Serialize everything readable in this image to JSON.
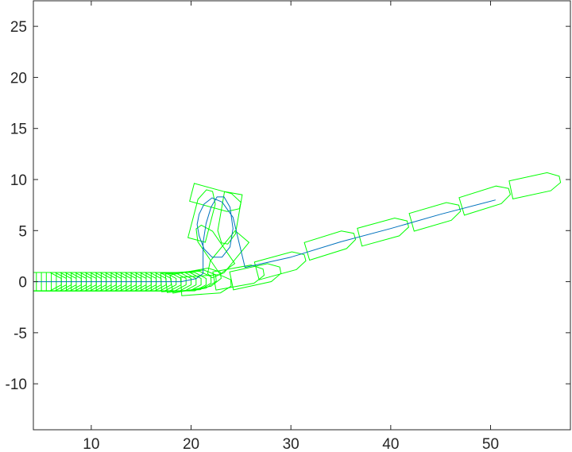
{
  "chart_data": {
    "type": "line",
    "title": "",
    "xlabel": "",
    "ylabel": "",
    "xlim": [
      4.2,
      58.0
    ],
    "ylim": [
      -14.5,
      27.5
    ],
    "grid": false,
    "legend": "none",
    "x_ticks": [
      10,
      20,
      30,
      40,
      50
    ],
    "y_ticks": [
      -10,
      -5,
      0,
      5,
      10,
      15,
      20,
      25
    ],
    "x_tick_labels": [
      "10",
      "20",
      "30",
      "40",
      "50"
    ],
    "y_tick_labels": [
      "-10",
      "-5",
      "0",
      "5",
      "10",
      "15",
      "20",
      "25"
    ],
    "colors": {
      "path": "#0072bd",
      "vehicle": "#00ff00",
      "axes": "#262626"
    },
    "series": [
      {
        "kind": "path",
        "x": [
          4.2,
          10,
          15,
          19,
          20.5,
          21.2,
          21.2,
          21.5,
          22.0,
          22.6,
          23.3,
          23.9,
          24.2,
          23.9,
          23.1,
          22.1,
          21.3,
          20.8,
          20.6,
          20.8,
          21.3,
          22.1,
          23.1,
          24.2,
          25.4,
          30,
          35,
          40,
          45,
          50.5
        ],
        "y": [
          0,
          0,
          0,
          0,
          0.3,
          0.8,
          3.8,
          5.7,
          7.3,
          8.3,
          8.3,
          7.3,
          5.2,
          3.4,
          2.4,
          2.4,
          3.2,
          4.5,
          5.6,
          6.6,
          7.6,
          8.2,
          7.8,
          6.3,
          1.4,
          2.4,
          3.9,
          5.2,
          6.6,
          8.0
        ]
      },
      {
        "kind": "vehicle-outlines",
        "length": 5.0,
        "width": 1.8,
        "poses": [
          [
            4.5,
            0,
            0
          ],
          [
            5.0,
            0,
            0
          ],
          [
            5.5,
            0,
            0
          ],
          [
            6.0,
            0,
            0
          ],
          [
            6.5,
            0,
            0
          ],
          [
            7.0,
            0,
            0
          ],
          [
            7.5,
            0,
            0
          ],
          [
            8.0,
            0,
            0
          ],
          [
            8.5,
            0,
            0
          ],
          [
            9.0,
            0,
            0
          ],
          [
            9.5,
            0,
            0
          ],
          [
            10.0,
            0,
            0
          ],
          [
            10.5,
            0,
            0
          ],
          [
            11.0,
            0,
            0
          ],
          [
            11.5,
            0,
            0
          ],
          [
            12.0,
            0,
            0
          ],
          [
            12.5,
            0,
            0
          ],
          [
            13.0,
            0,
            0
          ],
          [
            13.5,
            0,
            0
          ],
          [
            14.0,
            0,
            0
          ],
          [
            14.5,
            0,
            0
          ],
          [
            15.0,
            0,
            0
          ],
          [
            15.5,
            0,
            0
          ],
          [
            16.0,
            0,
            0
          ],
          [
            16.5,
            0,
            0
          ],
          [
            17.0,
            0,
            0
          ],
          [
            17.5,
            0,
            0
          ],
          [
            18.0,
            0,
            0
          ],
          [
            18.5,
            0,
            0
          ],
          [
            19.0,
            0,
            0
          ],
          [
            19.5,
            0.05,
            3
          ],
          [
            20.0,
            0.1,
            6
          ],
          [
            20.5,
            0.2,
            10
          ],
          [
            21.5,
            -0.3,
            4
          ],
          [
            22.2,
            3.3,
            125
          ],
          [
            21.2,
            6.5,
            75
          ],
          [
            22.5,
            8.1,
            -15
          ],
          [
            23.8,
            6.2,
            -100
          ],
          [
            23.5,
            2.5,
            -130
          ],
          [
            24.8,
            0.5,
            10
          ],
          [
            26.5,
            0.6,
            12
          ],
          [
            29.0,
            1.7,
            15
          ],
          [
            34.0,
            3.7,
            17
          ],
          [
            39.3,
            5.0,
            15
          ],
          [
            44.5,
            6.5,
            16
          ],
          [
            49.5,
            8.1,
            17
          ],
          [
            54.5,
            9.5,
            12
          ]
        ]
      }
    ]
  }
}
